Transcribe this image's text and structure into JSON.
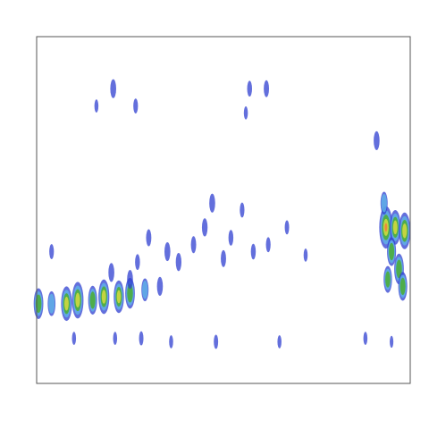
{
  "chart_data": {
    "type": "spots",
    "xlim": [
      0,
      100
    ],
    "ylim": [
      0,
      100
    ],
    "points": {
      "x": [
        0.5,
        4,
        8,
        11,
        15,
        18,
        22,
        25,
        29,
        33,
        93.5,
        96,
        98.5,
        95,
        97,
        94,
        98,
        93,
        91,
        35,
        38,
        42,
        45,
        47,
        50,
        52,
        55,
        58,
        62,
        67,
        72,
        30,
        27,
        25,
        20,
        4,
        20.5,
        26.5,
        57,
        61.5,
        16,
        56,
        10,
        21,
        28,
        36,
        48,
        65,
        88,
        95
      ],
      "y": [
        23,
        23,
        23,
        24,
        24,
        25,
        25,
        26,
        27,
        28,
        45,
        45,
        44,
        38,
        33,
        30,
        28,
        52,
        70,
        38,
        35,
        40,
        45,
        52,
        36,
        42,
        50,
        38,
        40,
        45,
        37,
        42,
        35,
        30,
        32,
        38,
        85,
        80,
        85,
        85,
        80,
        78,
        13,
        13,
        13,
        12,
        12,
        12,
        13,
        12
      ],
      "intensity": [
        60,
        45,
        70,
        75,
        55,
        70,
        65,
        60,
        40,
        30,
        90,
        70,
        75,
        55,
        60,
        50,
        55,
        40,
        30,
        30,
        28,
        25,
        28,
        30,
        25,
        22,
        20,
        22,
        20,
        18,
        15,
        25,
        22,
        30,
        30,
        20,
        30,
        20,
        22,
        25,
        15,
        15,
        15,
        15,
        18,
        15,
        18,
        15,
        15,
        12
      ]
    }
  }
}
